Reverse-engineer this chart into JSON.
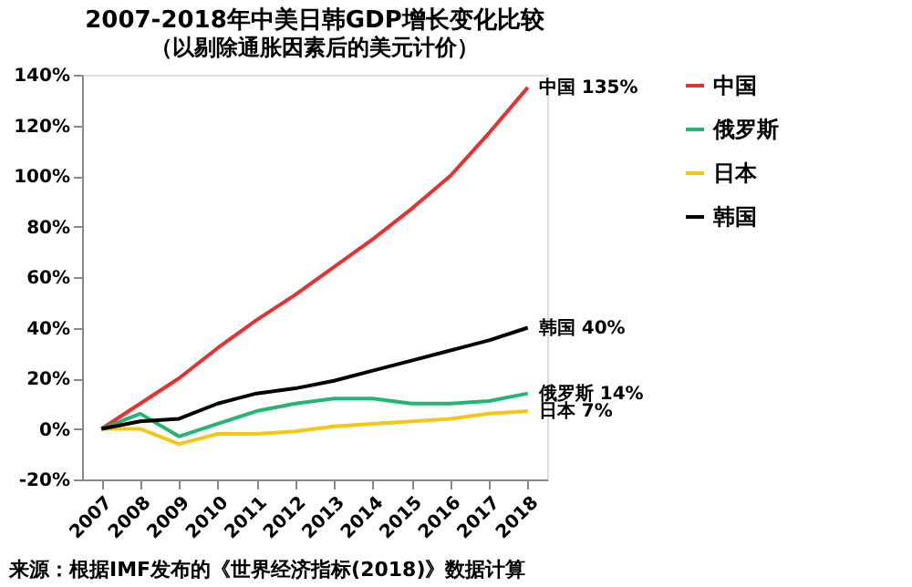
{
  "chart_data": {
    "type": "line",
    "title": "2007-2018年中美日韩GDP增长变化比较",
    "subtitle": "（以剔除通胀因素后的美元计价）",
    "categories": [
      "2007",
      "2008",
      "2009",
      "2010",
      "2011",
      "2012",
      "2013",
      "2014",
      "2015",
      "2016",
      "2017",
      "2018"
    ],
    "series": [
      {
        "name": "中国",
        "color": "#e8312f",
        "values": [
          0,
          10,
          20,
          32,
          43,
          53,
          64,
          75,
          87,
          100,
          117,
          135
        ]
      },
      {
        "name": "俄罗斯",
        "color": "#22b573",
        "values": [
          0,
          6,
          -3,
          2,
          7,
          10,
          12,
          12,
          10,
          10,
          11,
          14
        ]
      },
      {
        "name": "日本",
        "color": "#f5c518",
        "values": [
          0,
          0,
          -6,
          -2,
          -2,
          -1,
          1,
          2,
          3,
          4,
          6,
          7
        ]
      },
      {
        "name": "韩国",
        "color": "#000000",
        "values": [
          0,
          3,
          4,
          10,
          14,
          16,
          19,
          23,
          27,
          31,
          35,
          40
        ]
      }
    ],
    "ylim": [
      -20,
      140
    ],
    "yticks": [
      {
        "value": -20,
        "label": "-20%"
      },
      {
        "value": 0,
        "label": "0%"
      },
      {
        "value": 20,
        "label": "20%"
      },
      {
        "value": 40,
        "label": "40%"
      },
      {
        "value": 60,
        "label": "60%"
      },
      {
        "value": 80,
        "label": "80%"
      },
      {
        "value": 100,
        "label": "100%"
      },
      {
        "value": 120,
        "label": "120%"
      },
      {
        "value": 140,
        "label": "140%"
      }
    ],
    "grid": false,
    "legend": "right",
    "marker": "none",
    "line_style": "solid",
    "annotations": [
      {
        "text": "中国 135%",
        "x": "2018",
        "y": 135
      },
      {
        "text": "韩国 40%",
        "x": "2018",
        "y": 40
      },
      {
        "text": "俄罗斯 14%",
        "x": "2018",
        "y": 14
      },
      {
        "text": "日本 7%",
        "x": "2018",
        "y": 7
      },
      "来源：根据IMF发布的《世界经济指标(2018)》数据计算"
    ]
  }
}
